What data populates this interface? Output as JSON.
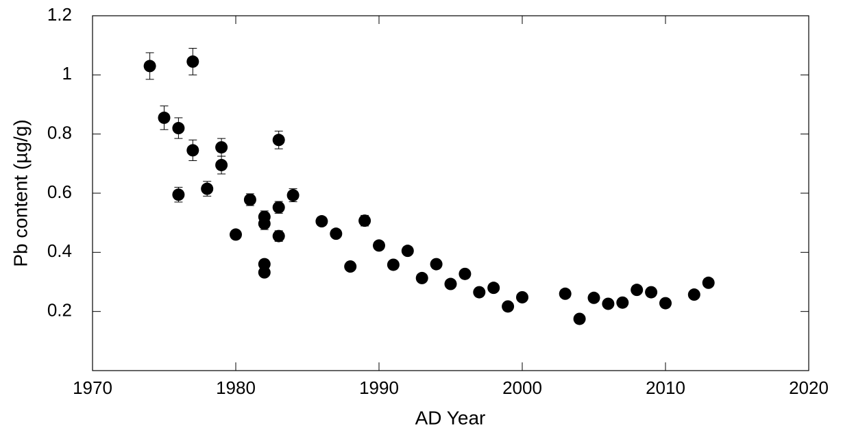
{
  "chart_data": {
    "type": "scatter",
    "x_label": "AD Year",
    "y_label": "Pb content (µg/g)",
    "xlim": [
      1970,
      2020
    ],
    "xticks": [
      1970,
      1980,
      1990,
      2000,
      2010,
      2020
    ],
    "ylim": [
      0,
      1.2
    ],
    "yticks": [
      0.2,
      0.4,
      0.6,
      0.8,
      1,
      1.2
    ],
    "color": "#000000",
    "x": [
      1974,
      1975,
      1976,
      1976,
      1977,
      1977,
      1978,
      1979,
      1979,
      1980,
      1981,
      1982,
      1982,
      1982,
      1982,
      1983,
      1983,
      1983,
      1984,
      1986,
      1987,
      1988,
      1989,
      1990,
      1991,
      1992,
      1993,
      1994,
      1995,
      1996,
      1997,
      1998,
      1999,
      2000,
      2003,
      2004,
      2005,
      2006,
      2007,
      2008,
      2009,
      2010,
      2012,
      2013
    ],
    "values": [
      1.03,
      0.855,
      0.82,
      0.595,
      1.045,
      0.745,
      0.615,
      0.755,
      0.695,
      0.46,
      0.578,
      0.52,
      0.497,
      0.36,
      0.332,
      0.78,
      0.552,
      0.455,
      0.593,
      0.505,
      0.463,
      0.352,
      0.507,
      0.423,
      0.358,
      0.405,
      0.313,
      0.36,
      0.293,
      0.327,
      0.265,
      0.28,
      0.217,
      0.248,
      0.26,
      0.175,
      0.246,
      0.226,
      0.23,
      0.273,
      0.265,
      0.228,
      0.257,
      0.297
    ],
    "errors": [
      0.045,
      0.04,
      0.035,
      0.025,
      0.045,
      0.035,
      0.025,
      0.03,
      0.03,
      0.015,
      0.02,
      0.02,
      0.02,
      0.015,
      0.012,
      0.03,
      0.02,
      0.018,
      0.022,
      0.015,
      0.012,
      0.01,
      0.018,
      0.012,
      0.01,
      0.01,
      0.008,
      0.01,
      0.008,
      0.01,
      0.008,
      0.008,
      0.008,
      0.008,
      0.008,
      0.008,
      0.008,
      0.008,
      0.008,
      0.008,
      0.008,
      0.008,
      0.008,
      0.008
    ]
  }
}
